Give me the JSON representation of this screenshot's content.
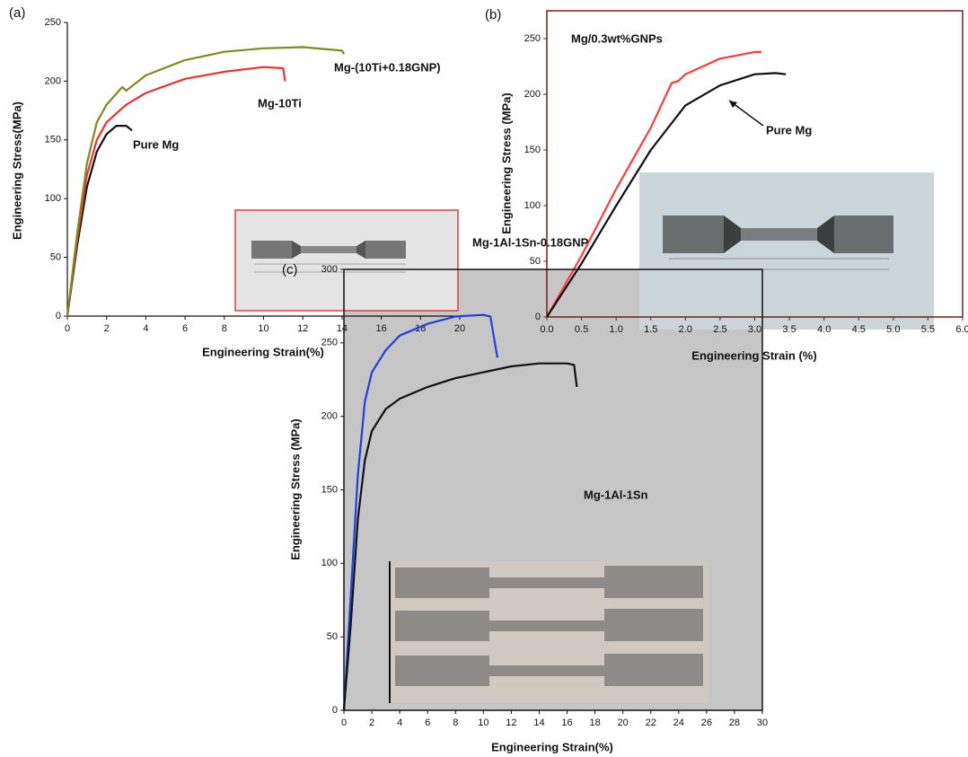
{
  "chart_data": [
    {
      "type": "line",
      "panel_label": "(a)",
      "xlabel": "Engineering Strain(%)",
      "ylabel": "Engineering Stress(MPa)",
      "xlim": [
        0,
        20
      ],
      "xticks": [
        0,
        2,
        4,
        6,
        8,
        10,
        12,
        14,
        16,
        18,
        20
      ],
      "ylim": [
        0,
        250
      ],
      "yticks": [
        0,
        50,
        100,
        150,
        200,
        250
      ],
      "series": [
        {
          "name": "Pure Mg",
          "color": "#111111",
          "x": [
            0,
            0.5,
            1,
            1.5,
            2,
            2.5,
            3,
            3.3
          ],
          "values": [
            0,
            60,
            110,
            140,
            155,
            162,
            162,
            158
          ]
        },
        {
          "name": "Mg-10Ti",
          "color": "#f03030",
          "x": [
            0,
            0.5,
            1,
            1.5,
            2,
            3,
            4,
            6,
            8,
            10,
            11,
            11.1
          ],
          "values": [
            0,
            65,
            120,
            150,
            165,
            180,
            190,
            202,
            208,
            212,
            211,
            200
          ]
        },
        {
          "name": "Mg-(10Ti+0.18GNP)",
          "color": "#7d8a1c",
          "x": [
            0,
            0.5,
            1,
            1.5,
            2,
            2.8,
            3,
            4,
            6,
            8,
            10,
            12,
            14,
            14.1
          ],
          "values": [
            0,
            70,
            130,
            165,
            180,
            195,
            192,
            205,
            218,
            225,
            228,
            229,
            226,
            223
          ]
        }
      ]
    },
    {
      "type": "line",
      "panel_label": "(b)",
      "xlabel": "Engineering Strain (%)",
      "ylabel": "Engineering Stress (MPa)",
      "xlim": [
        0,
        6
      ],
      "xticks": [
        {
          "value": 0,
          "label": "0.0"
        },
        0.5,
        {
          "value": 1,
          "label": "1.0"
        },
        1.5,
        {
          "value": 2,
          "label": "2.0"
        },
        2.5,
        {
          "value": 3,
          "label": "3.0"
        },
        3.5,
        {
          "value": 4,
          "label": "4.0"
        },
        4.5,
        {
          "value": 5,
          "label": "5.0"
        },
        5.5,
        {
          "value": 6,
          "label": "6.0"
        }
      ],
      "ylim": [
        0,
        275
      ],
      "yticks": [
        0,
        50,
        100,
        150,
        200,
        250
      ],
      "series": [
        {
          "name": "Mg/0.3wt%GNPs",
          "color": "#ff3b3b",
          "x": [
            0,
            0.5,
            1,
            1.5,
            1.8,
            1.9,
            2,
            2.5,
            3,
            3.1
          ],
          "values": [
            0,
            55,
            115,
            170,
            210,
            212,
            218,
            232,
            238,
            238
          ]
        },
        {
          "name": "Pure Mg",
          "color": "#111111",
          "x": [
            0,
            0.5,
            1,
            1.5,
            2,
            2.5,
            3,
            3.3,
            3.45
          ],
          "values": [
            0,
            48,
            100,
            150,
            190,
            208,
            218,
            219,
            218
          ]
        }
      ]
    },
    {
      "type": "line",
      "panel_label": "(c)",
      "xlabel": "Engineering Strain(%)",
      "ylabel": "Engineering Stress (MPa)",
      "xlim": [
        0,
        30
      ],
      "xticks": [
        0,
        2,
        4,
        6,
        8,
        10,
        12,
        14,
        16,
        18,
        20,
        22,
        24,
        26,
        28,
        30
      ],
      "ylim": [
        0,
        300
      ],
      "yticks": [
        0,
        50,
        100,
        150,
        200,
        250,
        300
      ],
      "series": [
        {
          "name": "Mg-1Al-1Sn-0.18GNP",
          "color": "#1f3fe0",
          "x": [
            0,
            0.5,
            1,
            1.5,
            2,
            3,
            4,
            6,
            8,
            10,
            10.5,
            11
          ],
          "values": [
            0,
            80,
            160,
            210,
            230,
            245,
            255,
            263,
            268,
            269,
            268,
            240
          ]
        },
        {
          "name": "Mg-1Al-1Sn",
          "color": "#111111",
          "x": [
            0,
            0.5,
            1,
            1.5,
            2,
            3,
            4,
            6,
            8,
            10,
            12,
            14,
            16,
            16.5,
            16.7
          ],
          "values": [
            0,
            60,
            130,
            170,
            190,
            205,
            212,
            220,
            226,
            230,
            234,
            236,
            236,
            235,
            220
          ]
        }
      ]
    }
  ]
}
